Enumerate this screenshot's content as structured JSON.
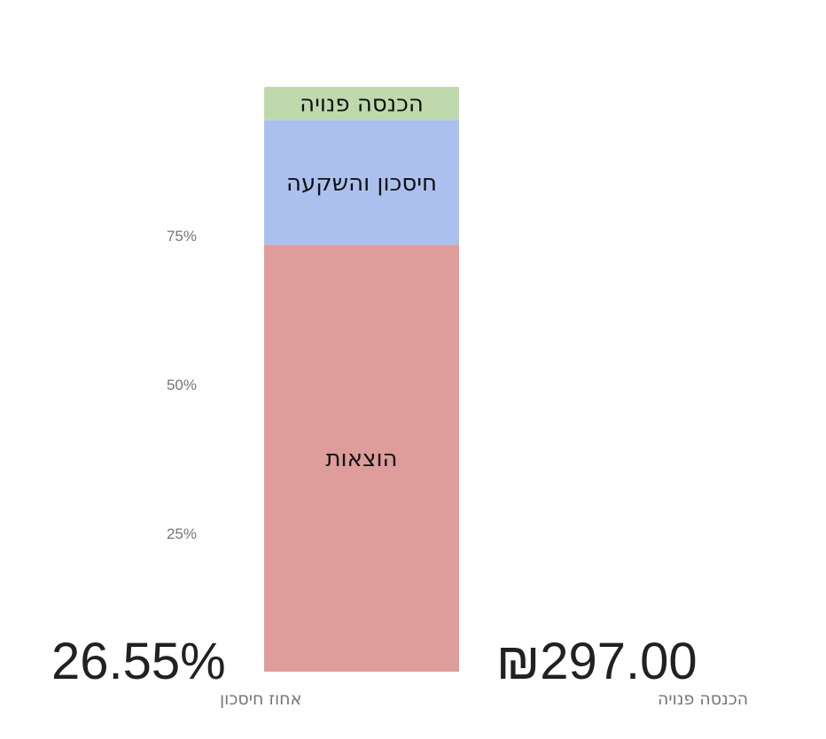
{
  "chart_data": {
    "type": "bar",
    "stacked": true,
    "ylim": [
      0,
      100
    ],
    "ytick_labels": [
      "25%",
      "50%",
      "75%"
    ],
    "yticks": [
      25,
      50,
      75
    ],
    "grid": false,
    "series": [
      {
        "name": "הוצאות",
        "values": [
          73.45
        ],
        "color": "#de9c9a"
      },
      {
        "name": "חיסכון והשקעה",
        "values": [
          21.0
        ],
        "color": "#abc0ee"
      },
      {
        "name": "הכנסה פנויה",
        "values": [
          5.55
        ],
        "color": "#bfd9ad"
      }
    ]
  },
  "kpis": [
    {
      "value": "26.55%",
      "label": "אחוז חיסכון"
    },
    {
      "value": "₪297.00",
      "label": "הכנסה פנויה"
    }
  ]
}
